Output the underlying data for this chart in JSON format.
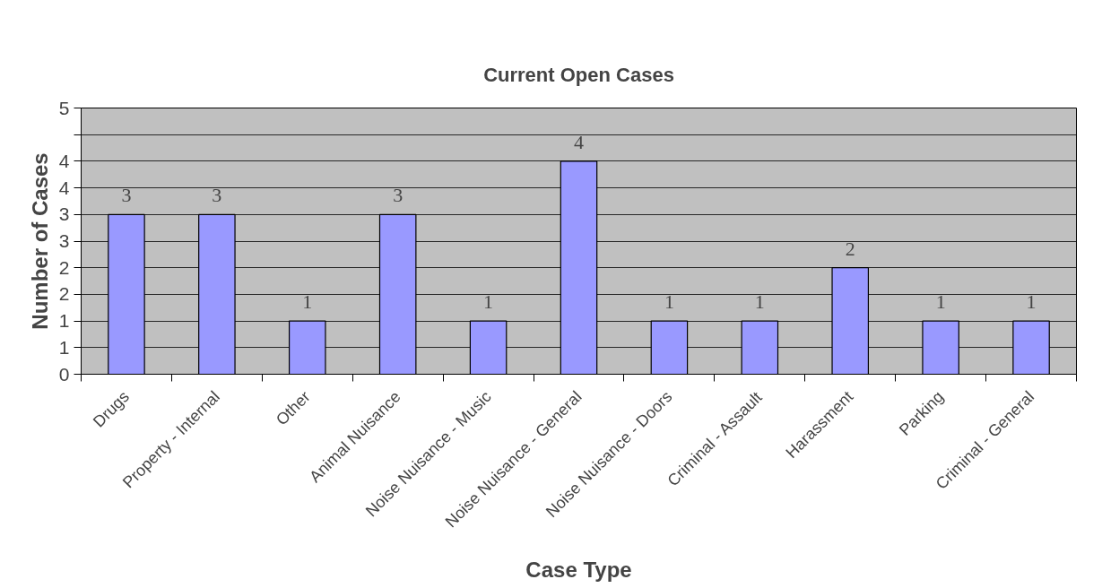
{
  "chart_data": {
    "type": "bar",
    "title": "Current Open Cases",
    "xlabel": "Case Type",
    "ylabel": "Number of Cases",
    "categories": [
      "Drugs",
      "Property - Internal",
      "Other",
      "Animal Nuisance",
      "Noise Nuisance - Music",
      "Noise Nuisance - General",
      "Noise Nuisance - Doors",
      "Criminal - Assault",
      "Harassment",
      "Parking",
      "Criminal - General"
    ],
    "values": [
      3,
      3,
      1,
      3,
      1,
      4,
      1,
      1,
      2,
      1,
      1
    ],
    "color": "#9999ff",
    "ylim": [
      0,
      5
    ],
    "yticks": [
      0,
      {
        "value": 0.5,
        "label": "1"
      },
      1,
      {
        "value": 1.5,
        "label": "2"
      },
      2,
      {
        "value": 2.5,
        "label": "3"
      },
      3,
      {
        "value": 3.5,
        "label": "4"
      },
      4,
      {
        "value": 4.5,
        "label": null
      },
      5
    ],
    "grid": "y",
    "data_labels": true
  }
}
